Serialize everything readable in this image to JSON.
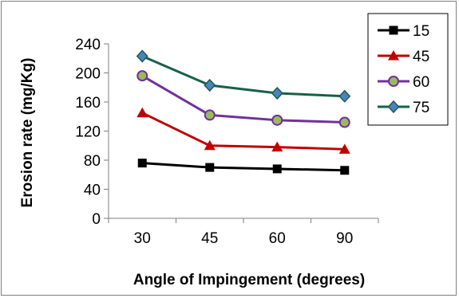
{
  "chart_data": {
    "type": "line",
    "title": "",
    "xlabel": "Angle of Impingement (degrees)",
    "ylabel": "Erosion rate (mg/Kg)",
    "categories": [
      "30",
      "45",
      "60",
      "90"
    ],
    "ylim": [
      0,
      240
    ],
    "yticks": [
      "0",
      "40",
      "80",
      "120",
      "160",
      "200",
      "240"
    ],
    "grid": false,
    "legend_position": "top-right",
    "series": [
      {
        "name": "15",
        "values": [
          76,
          70,
          68,
          66
        ],
        "color": "#000000",
        "marker": "square"
      },
      {
        "name": "45",
        "values": [
          145,
          100,
          98,
          95
        ],
        "color": "#c00000",
        "marker": "triangle"
      },
      {
        "name": "60",
        "values": [
          196,
          142,
          135,
          132
        ],
        "color": "#7030a0",
        "marker": "circle"
      },
      {
        "name": "75",
        "values": [
          223,
          183,
          172,
          168
        ],
        "color": "#17604a",
        "marker": "diamond"
      }
    ]
  }
}
